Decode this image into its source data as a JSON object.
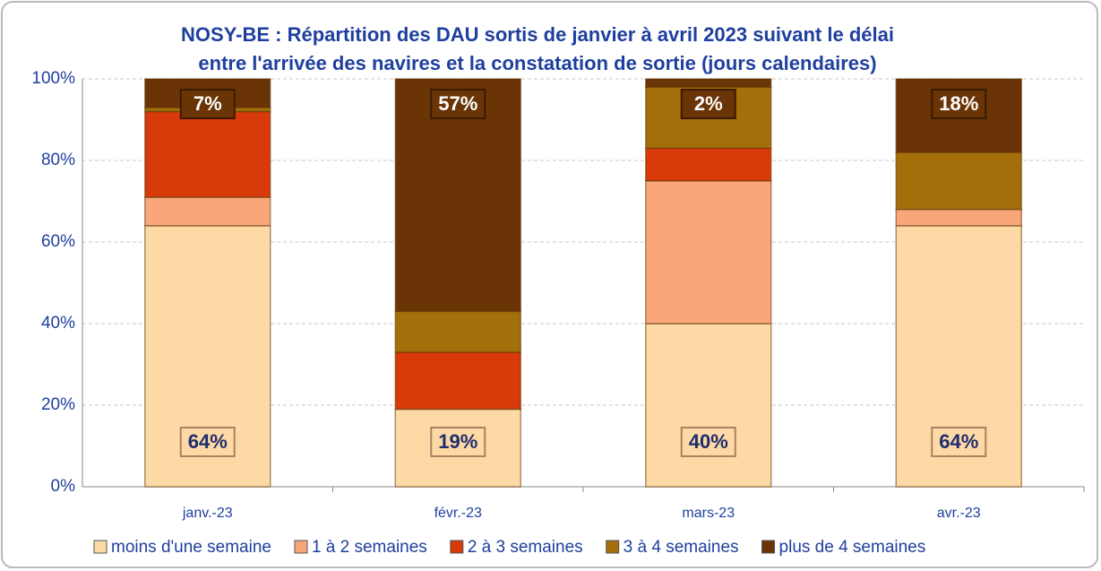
{
  "chart_data": {
    "type": "stacked_bar",
    "title": [
      "NOSY-BE : Répartition des DAU sortis de janvier à avril 2023 suivant le délai",
      "entre l'arrivée des navires et la constatation de sortie (jours calendaires)"
    ],
    "categories": [
      "janv.-23",
      "févr.-23",
      "mars-23",
      "avr.-23"
    ],
    "series": [
      {
        "name": "moins d'une semaine",
        "color": "#fdd9a5",
        "values": [
          64,
          19,
          40,
          64
        ],
        "value_labels": [
          "64%",
          "19%",
          "40%",
          "64%"
        ]
      },
      {
        "name": "1 à 2 semaines",
        "color": "#f9a67a",
        "values": [
          7,
          0,
          35,
          4
        ]
      },
      {
        "name": "2 à 3 semaines",
        "color": "#d83a0a",
        "values": [
          21,
          14,
          8,
          0
        ]
      },
      {
        "name": "3 à 4 semaines",
        "color": "#a36f0a",
        "values": [
          1,
          10,
          15,
          14
        ]
      },
      {
        "name": "plus de 4 semaines",
        "color": "#6a3406",
        "values": [
          7,
          57,
          2,
          18
        ],
        "value_labels": [
          "7%",
          "57%",
          "2%",
          "18%"
        ]
      }
    ],
    "ylim": [
      0,
      100
    ],
    "yticks": [
      {
        "value": 0,
        "label": "0%"
      },
      {
        "value": 20,
        "label": "20%"
      },
      {
        "value": 40,
        "label": "40%"
      },
      {
        "value": 60,
        "label": "60%"
      },
      {
        "value": 80,
        "label": "80%"
      },
      {
        "value": 100,
        "label": "100%"
      }
    ],
    "grid": true,
    "legend": "bottom"
  }
}
